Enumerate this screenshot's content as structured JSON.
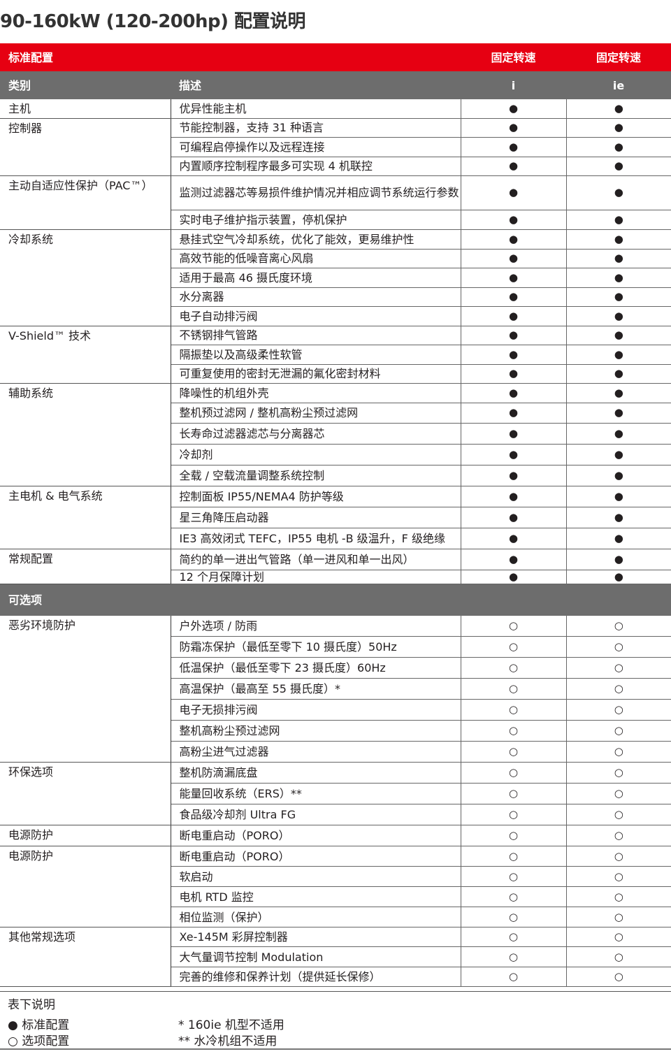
{
  "title": "90-160kW (120-200hp) 配置说明",
  "colors": {
    "accent": "#e60012",
    "header_gray": "#6d6d6d"
  },
  "header": {
    "section": "标准配置",
    "col3": "固定转速",
    "col4": "固定转速",
    "category": "类别",
    "description": "描述",
    "model_i": "i",
    "model_ie": "ie"
  },
  "marks": {
    "standard": "●",
    "optional": "○"
  },
  "standard": [
    {
      "category": "主机",
      "items": [
        "优异性能主机"
      ]
    },
    {
      "category": "控制器",
      "items": [
        "节能控制器，支持 31 种语言",
        "可编程启停操作以及远程连接",
        "内置顺序控制程序最多可实现 4 机联控"
      ]
    },
    {
      "category": "主动自适应性保护（PAC™）",
      "items": [
        "监测过滤器芯等易损件维护情况并相应调节系统运行参数",
        "实时电子维护指示装置，停机保护"
      ]
    },
    {
      "category": "冷却系统",
      "items": [
        "悬挂式空气冷却系统，优化了能效，更易维护性",
        "高效节能的低噪音离心风扇",
        "适用于最高 46 摄氏度环境",
        "水分离器",
        "电子自动排污阀"
      ]
    },
    {
      "category": "V-Shield™ 技术",
      "items": [
        "不锈钢排气管路",
        "隔振垫以及高级柔性软管",
        "可重复使用的密封无泄漏的氟化密封材料"
      ]
    },
    {
      "category": "辅助系统",
      "items": [
        "降噪性的机组外壳",
        "整机预过滤网 / 整机高粉尘预过滤网",
        "长寿命过滤器滤芯与分离器芯",
        "冷却剂",
        "全载 / 空载流量调整系统控制"
      ]
    },
    {
      "category": "主电机 & 电气系统",
      "items": [
        "控制面板 IP55/NEMA4 防护等级",
        "星三角降压启动器",
        "IE3 高效闭式 TEFC，IP55 电机 -B 级温升，F 级绝缘"
      ]
    },
    {
      "category": "常规配置",
      "items": [
        "简约的单一进出气管路（单一进风和单一出风）",
        "12 个月保障计划"
      ]
    }
  ],
  "optional_section": "可选项",
  "optional": [
    {
      "category": "恶劣环境防护",
      "items": [
        "户外选项 / 防雨",
        "防霜冻保护（最低至零下 10 摄氏度）50Hz",
        "低温保护（最低至零下 23 摄氏度）60Hz",
        "高温保护（最高至 55 摄氏度）*",
        "电子无损排污阀",
        "整机高粉尘预过滤网",
        "高粉尘进气过滤器"
      ]
    },
    {
      "category": "环保选项",
      "items": [
        "整机防滴漏底盘",
        "能量回收系统（ERS）**",
        "食品级冷却剂 Ultra FG"
      ]
    },
    {
      "category": "电源防护",
      "items": [
        "断电重启动（PORO）"
      ]
    },
    {
      "category": "电源防护",
      "items": [
        "断电重启动（PORO）",
        "软启动",
        "电机 RTD 监控",
        "相位监测（保护）"
      ]
    },
    {
      "category": "其他常规选项",
      "items": [
        "Xe-145M 彩屏控制器",
        "大气量调节控制 Modulation",
        "完善的维修和保养计划（提供延长保修）"
      ]
    }
  ],
  "legend": {
    "title": "表下说明",
    "standard": "● 标准配置",
    "optional": "○ 选项配置",
    "note1": "* 160ie 机型不适用",
    "note2": "** 水冷机组不适用"
  }
}
